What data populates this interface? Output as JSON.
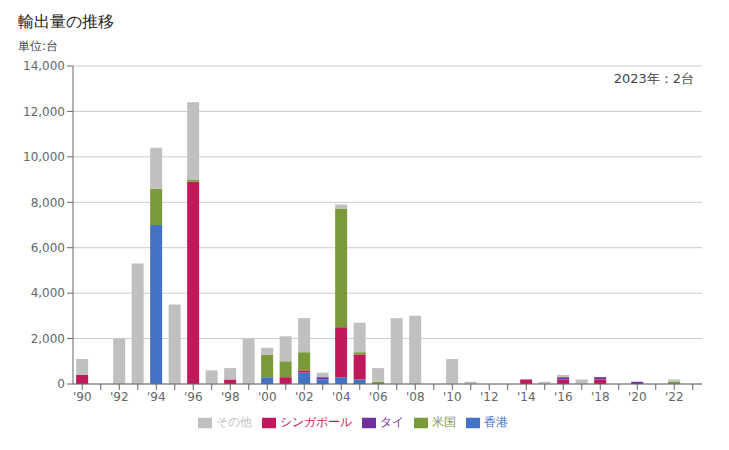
{
  "chart_data": {
    "type": "bar",
    "title": "輸出量の推移",
    "ylabel": "単位:台",
    "annotation": "2023年：2台",
    "stacked": true,
    "grid": true,
    "legend": "bottom",
    "categories": [
      "'90",
      null,
      "'92",
      null,
      "'94",
      null,
      "'96",
      null,
      "'98",
      null,
      "'00",
      null,
      "'02",
      null,
      "'04",
      null,
      "'06",
      null,
      "'08",
      null,
      "'10",
      null,
      "'12",
      null,
      "'14",
      null,
      "'16",
      null,
      "'18",
      null,
      "'20",
      null,
      "'22",
      null
    ],
    "series": [
      {
        "name": "香港",
        "color": "#4472c4",
        "values": [
          0,
          0,
          0,
          0,
          7000,
          0,
          0,
          0,
          0,
          0,
          300,
          0,
          500,
          200,
          300,
          200,
          0,
          0,
          0,
          0,
          0,
          0,
          0,
          0,
          0,
          0,
          0,
          0,
          0,
          0,
          0,
          0,
          0,
          0
        ]
      },
      {
        "name": "シンガポール",
        "color": "#c0185a",
        "values": [
          400,
          0,
          0,
          0,
          0,
          0,
          8900,
          0,
          200,
          0,
          0,
          300,
          100,
          0,
          2200,
          1100,
          0,
          0,
          0,
          0,
          0,
          0,
          0,
          0,
          200,
          0,
          200,
          0,
          200,
          0,
          0,
          0,
          0,
          0
        ]
      },
      {
        "name": "米国",
        "color": "#7a9a3a",
        "values": [
          0,
          0,
          0,
          0,
          1600,
          0,
          100,
          0,
          0,
          0,
          1000,
          700,
          800,
          0,
          5200,
          100,
          100,
          0,
          0,
          0,
          0,
          0,
          0,
          0,
          0,
          0,
          0,
          0,
          0,
          0,
          0,
          0,
          100,
          0
        ]
      },
      {
        "name": "タイ",
        "color": "#7030a0",
        "values": [
          0,
          0,
          0,
          0,
          0,
          0,
          0,
          0,
          0,
          0,
          0,
          0,
          0,
          100,
          0,
          0,
          0,
          0,
          0,
          0,
          0,
          0,
          0,
          0,
          0,
          0,
          100,
          0,
          100,
          0,
          100,
          0,
          0,
          0
        ]
      },
      {
        "name": "その他",
        "color": "#c0c0c0",
        "values": [
          700,
          0,
          2000,
          5300,
          1800,
          3500,
          3400,
          600,
          500,
          2000,
          300,
          1100,
          1500,
          200,
          200,
          1300,
          600,
          2900,
          3000,
          0,
          1100,
          100,
          0,
          0,
          0,
          100,
          100,
          200,
          0,
          0,
          0,
          0,
          100,
          2
        ]
      }
    ],
    "ylim": [
      0,
      14000
    ],
    "yticks": [
      0,
      {
        "value": 2000,
        "label": "2,000"
      },
      {
        "value": 4000,
        "label": "4,000"
      },
      {
        "value": 6000,
        "label": "6,000"
      },
      {
        "value": 8000,
        "label": "8,000"
      },
      {
        "value": 10000,
        "label": "10,000"
      },
      {
        "value": 12000,
        "label": "12,000"
      },
      {
        "value": 14000,
        "label": "14,000"
      }
    ]
  }
}
